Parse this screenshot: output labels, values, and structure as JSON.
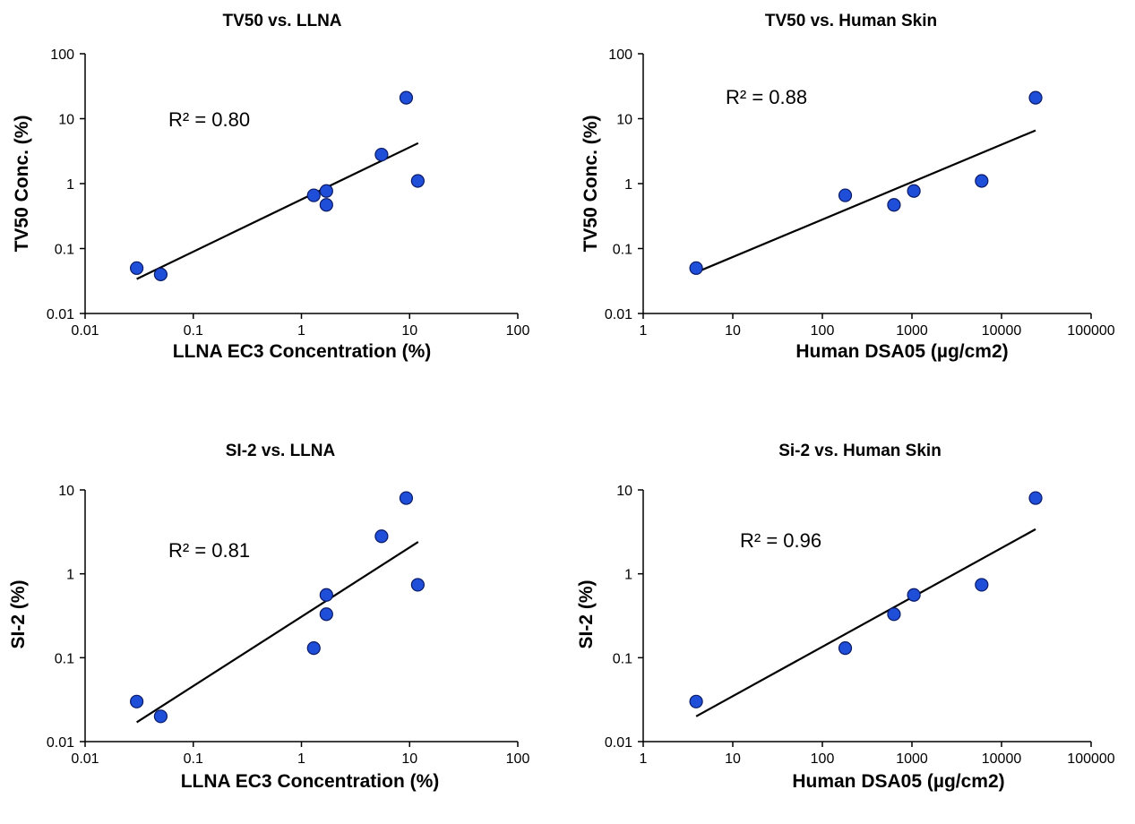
{
  "chart_data": [
    {
      "type": "scatter",
      "title": "TV50 vs. LLNA",
      "xlabel": "LLNA EC3 Concentration  (%)",
      "ylabel": "TV50 Conc. (%)",
      "xscale": "log",
      "yscale": "log",
      "xlim": [
        0.01,
        100
      ],
      "ylim": [
        0.01,
        100
      ],
      "xticks": [
        "0.01",
        "0.1",
        "1",
        "10",
        "100"
      ],
      "yticks": [
        "0.01",
        "0.1",
        "1",
        "10",
        "100"
      ],
      "annotation": "R² = 0.80",
      "grid": false,
      "marker_color": "#1f4ed8",
      "trendline": {
        "x": [
          0.03,
          12
        ],
        "y": [
          0.034,
          4.2
        ]
      },
      "series": [
        {
          "x": [
            0.03,
            0.05,
            1.3,
            1.7,
            1.7,
            5.5,
            9.3,
            11.9
          ],
          "y": [
            0.05,
            0.04,
            0.66,
            0.77,
            0.47,
            2.8,
            21,
            1.1
          ]
        }
      ]
    },
    {
      "type": "scatter",
      "title": "TV50 vs. Human Skin",
      "xlabel": "Human DSA05 (µg/cm2)",
      "ylabel": "TV50 Conc. (%)",
      "xscale": "log",
      "yscale": "log",
      "xlim": [
        1,
        100000
      ],
      "ylim": [
        0.01,
        100
      ],
      "xticks": [
        "1",
        "10",
        "100",
        "1000",
        "10000",
        "100000"
      ],
      "yticks": [
        "0.01",
        "0.1",
        "1",
        "10",
        "100"
      ],
      "annotation": "R² = 0.88",
      "grid": false,
      "marker_color": "#1f4ed8",
      "trendline": {
        "x": [
          3.9,
          24000
        ],
        "y": [
          0.043,
          6.6
        ]
      },
      "series": [
        {
          "x": [
            3.9,
            180,
            630,
            1050,
            6000,
            24000
          ],
          "y": [
            0.05,
            0.66,
            0.47,
            0.77,
            1.1,
            21
          ]
        }
      ]
    },
    {
      "type": "scatter",
      "title": "SI-2 vs. LLNA",
      "xlabel": "LLNA EC3 Concentration (%)",
      "ylabel": "SI-2 (%)",
      "xscale": "log",
      "yscale": "log",
      "xlim": [
        0.01,
        100
      ],
      "ylim": [
        0.01,
        10
      ],
      "xticks": [
        "0.01",
        "0.1",
        "1",
        "10",
        "100"
      ],
      "yticks": [
        "0.01",
        "0.1",
        "1",
        "10"
      ],
      "annotation": "R² = 0.81",
      "grid": false,
      "marker_color": "#1f4ed8",
      "trendline": {
        "x": [
          0.03,
          12
        ],
        "y": [
          0.017,
          2.4
        ]
      },
      "series": [
        {
          "x": [
            0.03,
            0.05,
            1.3,
            1.7,
            1.7,
            5.5,
            9.3,
            11.9
          ],
          "y": [
            0.03,
            0.02,
            0.13,
            0.33,
            0.56,
            2.8,
            8.0,
            0.74
          ]
        }
      ]
    },
    {
      "type": "scatter",
      "title": "Si-2 vs. Human Skin",
      "xlabel": "Human DSA05 (µg/cm2)",
      "ylabel": "SI-2 (%)",
      "xscale": "log",
      "yscale": "log",
      "xlim": [
        1,
        100000
      ],
      "ylim": [
        0.01,
        10
      ],
      "xticks": [
        "1",
        "10",
        "100",
        "1000",
        "10000",
        "100000"
      ],
      "yticks": [
        "0.01",
        "0.1",
        "1",
        "10"
      ],
      "annotation": "R² = 0.96",
      "grid": false,
      "marker_color": "#1f4ed8",
      "trendline": {
        "x": [
          3.9,
          24000
        ],
        "y": [
          0.02,
          3.4
        ]
      },
      "series": [
        {
          "x": [
            3.9,
            180,
            630,
            1050,
            6000,
            24000
          ],
          "y": [
            0.03,
            0.13,
            0.33,
            0.56,
            0.74,
            8.0
          ]
        }
      ]
    }
  ]
}
